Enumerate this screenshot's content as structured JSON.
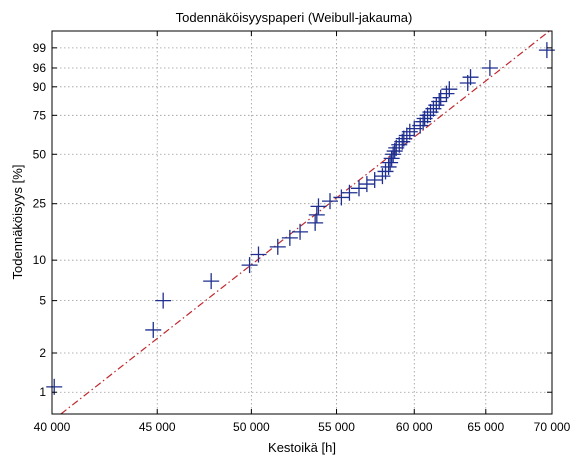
{
  "chart_data": {
    "type": "scatter",
    "title": "Todennäköisyyspaperi (Weibull-jakauma)",
    "xlabel": "Kestoikä [h]",
    "ylabel": "Todennäköisyys [%]",
    "x_scale": "log",
    "y_scale": "weibull-probability",
    "xlim": [
      40000,
      70000
    ],
    "ylim": [
      0.68,
      99.8
    ],
    "grid": true,
    "x_ticks": [
      40000,
      45000,
      50000,
      55000,
      60000,
      65000,
      70000
    ],
    "x_tick_labels": [
      "40 000",
      "45 000",
      "50 000",
      "55 000",
      "60 000",
      "65 000",
      "70 000"
    ],
    "y_ticks": [
      1,
      2,
      5,
      10,
      25,
      50,
      75,
      90,
      96,
      99
    ],
    "y_tick_labels": [
      "1",
      "2",
      "5",
      "10",
      "25",
      "50",
      "75",
      "90",
      "96",
      "99"
    ],
    "marker_color": "#1f2f8f",
    "fit_color": "#c0282d",
    "series": [
      {
        "marker": "plus",
        "points": [
          [
            40100,
            1.1
          ],
          [
            44800,
            3.0
          ],
          [
            45300,
            5.0
          ],
          [
            47800,
            7.0
          ],
          [
            49900,
            9.2
          ],
          [
            50400,
            11.0
          ],
          [
            51500,
            12.5
          ],
          [
            52200,
            14.5
          ],
          [
            52800,
            16.0
          ],
          [
            53700,
            18.5
          ],
          [
            53800,
            21.0
          ],
          [
            53900,
            24.0
          ],
          [
            54600,
            26.0
          ],
          [
            55300,
            27.5
          ],
          [
            55800,
            29.5
          ],
          [
            56400,
            31.5
          ],
          [
            56900,
            33.5
          ],
          [
            57400,
            35.5
          ],
          [
            57900,
            37.5
          ],
          [
            58100,
            40.0
          ],
          [
            58300,
            42.5
          ],
          [
            58400,
            45.0
          ],
          [
            58500,
            47.5
          ],
          [
            58600,
            50.0
          ],
          [
            58700,
            52.0
          ],
          [
            58800,
            54.0
          ],
          [
            59000,
            56.0
          ],
          [
            59200,
            58.0
          ],
          [
            59300,
            60.0
          ],
          [
            59500,
            62.0
          ],
          [
            59700,
            64.5
          ],
          [
            60000,
            66.5
          ],
          [
            60400,
            68.5
          ],
          [
            60600,
            71.0
          ],
          [
            60700,
            73.0
          ],
          [
            60900,
            75.0
          ],
          [
            61100,
            77.0
          ],
          [
            61300,
            79.0
          ],
          [
            61500,
            81.0
          ],
          [
            61700,
            83.0
          ],
          [
            61800,
            85.0
          ],
          [
            62200,
            87.0
          ],
          [
            62400,
            89.0
          ],
          [
            63700,
            91.5
          ],
          [
            63900,
            93.5
          ],
          [
            65300,
            96.0
          ],
          [
            69600,
            98.8
          ]
        ]
      },
      {
        "kind": "fit-line",
        "points": [
          [
            40400,
            0.68
          ],
          [
            69800,
            99.8
          ]
        ]
      }
    ]
  }
}
